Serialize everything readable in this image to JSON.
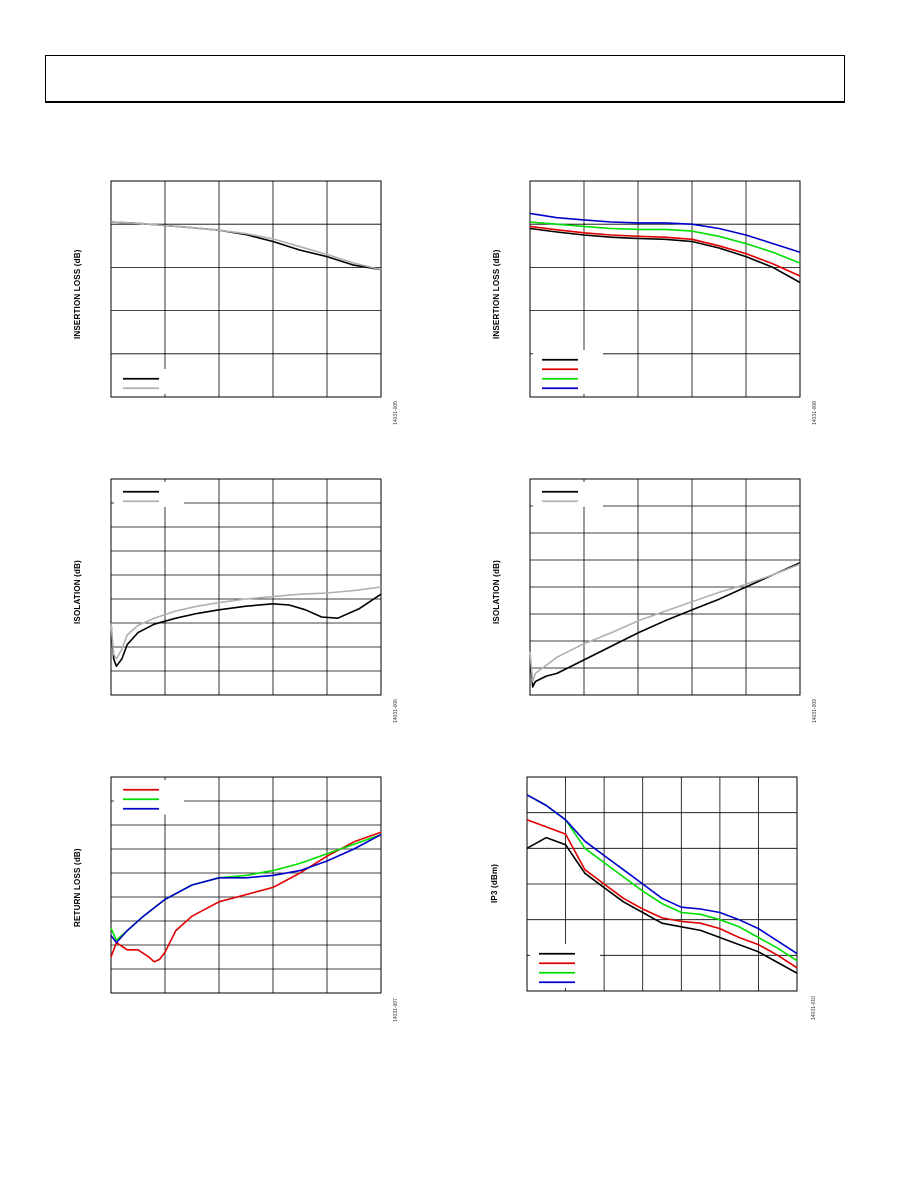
{
  "page": {
    "header_text": ""
  },
  "charts": [
    {
      "ylabel": "INSERTION LOSS (dB)",
      "fig_code": "14031-005",
      "xlim": [
        0,
        5
      ],
      "ylim": [
        0,
        5
      ],
      "grid": {
        "xdiv": 5,
        "ydiv": 5
      },
      "legend": {
        "placement": "bottom-left"
      },
      "series": [
        {
          "color": "#000000",
          "points": [
            [
              0,
              4.05
            ],
            [
              0.5,
              4.02
            ],
            [
              1,
              3.97
            ],
            [
              1.5,
              3.92
            ],
            [
              2,
              3.86
            ],
            [
              2.5,
              3.76
            ],
            [
              3,
              3.6
            ],
            [
              3.5,
              3.4
            ],
            [
              4,
              3.25
            ],
            [
              4.5,
              3.05
            ],
            [
              5,
              2.95
            ]
          ]
        },
        {
          "color": "#b0b0b0",
          "points": [
            [
              0,
              4.05
            ],
            [
              0.5,
              4.02
            ],
            [
              1,
              3.97
            ],
            [
              1.5,
              3.92
            ],
            [
              2,
              3.86
            ],
            [
              2.5,
              3.78
            ],
            [
              3,
              3.66
            ],
            [
              3.5,
              3.48
            ],
            [
              4,
              3.3
            ],
            [
              4.5,
              3.1
            ],
            [
              5,
              2.95
            ]
          ]
        }
      ]
    },
    {
      "ylabel": "INSERTION LOSS (dB)",
      "fig_code": "14031-008",
      "xlim": [
        0,
        5
      ],
      "ylim": [
        0,
        5
      ],
      "grid": {
        "xdiv": 5,
        "ydiv": 5
      },
      "legend": {
        "placement": "bottom-left"
      },
      "series": [
        {
          "color": "#000000",
          "points": [
            [
              0,
              3.9
            ],
            [
              0.5,
              3.82
            ],
            [
              1,
              3.75
            ],
            [
              1.5,
              3.7
            ],
            [
              2,
              3.67
            ],
            [
              2.5,
              3.65
            ],
            [
              3,
              3.6
            ],
            [
              3.5,
              3.45
            ],
            [
              4,
              3.25
            ],
            [
              4.5,
              3.0
            ],
            [
              5,
              2.65
            ]
          ]
        },
        {
          "color": "#e00000",
          "points": [
            [
              0,
              3.95
            ],
            [
              0.5,
              3.87
            ],
            [
              1,
              3.8
            ],
            [
              1.5,
              3.75
            ],
            [
              2,
              3.72
            ],
            [
              2.5,
              3.7
            ],
            [
              3,
              3.65
            ],
            [
              3.5,
              3.5
            ],
            [
              4,
              3.32
            ],
            [
              4.5,
              3.08
            ],
            [
              5,
              2.8
            ]
          ]
        },
        {
          "color": "#00dd00",
          "points": [
            [
              0,
              4.05
            ],
            [
              0.5,
              4.0
            ],
            [
              1,
              3.95
            ],
            [
              1.5,
              3.9
            ],
            [
              2,
              3.88
            ],
            [
              2.5,
              3.88
            ],
            [
              3,
              3.84
            ],
            [
              3.5,
              3.72
            ],
            [
              4,
              3.55
            ],
            [
              4.5,
              3.35
            ],
            [
              5,
              3.1
            ]
          ]
        },
        {
          "color": "#0000cc",
          "points": [
            [
              0,
              4.25
            ],
            [
              0.5,
              4.15
            ],
            [
              1,
              4.1
            ],
            [
              1.5,
              4.05
            ],
            [
              2,
              4.03
            ],
            [
              2.5,
              4.03
            ],
            [
              3,
              4.0
            ],
            [
              3.5,
              3.9
            ],
            [
              4,
              3.75
            ],
            [
              4.5,
              3.55
            ],
            [
              5,
              3.35
            ]
          ]
        }
      ]
    },
    {
      "ylabel": "ISOLATION (dB)",
      "fig_code": "14031-006",
      "xlim": [
        0,
        5
      ],
      "ylim": [
        0,
        9
      ],
      "grid": {
        "xdiv": 5,
        "ydiv": 9
      },
      "legend": {
        "placement": "top-left"
      },
      "series": [
        {
          "color": "#000000",
          "points": [
            [
              0,
              3.0
            ],
            [
              0.05,
              1.5
            ],
            [
              0.1,
              1.2
            ],
            [
              0.2,
              1.5
            ],
            [
              0.3,
              2.1
            ],
            [
              0.5,
              2.6
            ],
            [
              0.8,
              2.95
            ],
            [
              1.2,
              3.2
            ],
            [
              1.6,
              3.4
            ],
            [
              2,
              3.55
            ],
            [
              2.5,
              3.7
            ],
            [
              3,
              3.8
            ],
            [
              3.3,
              3.75
            ],
            [
              3.6,
              3.55
            ],
            [
              3.9,
              3.25
            ],
            [
              4.2,
              3.2
            ],
            [
              4.6,
              3.6
            ],
            [
              5,
              4.2
            ]
          ]
        },
        {
          "color": "#b0b0b0",
          "points": [
            [
              0,
              3.0
            ],
            [
              0.05,
              1.7
            ],
            [
              0.1,
              1.5
            ],
            [
              0.2,
              1.9
            ],
            [
              0.3,
              2.5
            ],
            [
              0.5,
              2.9
            ],
            [
              0.8,
              3.2
            ],
            [
              1.2,
              3.5
            ],
            [
              1.6,
              3.7
            ],
            [
              2,
              3.85
            ],
            [
              2.5,
              4.0
            ],
            [
              3,
              4.1
            ],
            [
              3.5,
              4.2
            ],
            [
              4,
              4.25
            ],
            [
              4.5,
              4.35
            ],
            [
              5,
              4.5
            ]
          ]
        }
      ]
    },
    {
      "ylabel": "ISOLATION (dB)",
      "fig_code": "14031-009",
      "xlim": [
        0,
        5
      ],
      "ylim": [
        0,
        8
      ],
      "grid": {
        "xdiv": 5,
        "ydiv": 8
      },
      "legend": {
        "placement": "top-left"
      },
      "series": [
        {
          "color": "#000000",
          "points": [
            [
              0,
              1.5
            ],
            [
              0.05,
              0.3
            ],
            [
              0.1,
              0.5
            ],
            [
              0.3,
              0.7
            ],
            [
              0.5,
              0.8
            ],
            [
              1,
              1.3
            ],
            [
              1.5,
              1.8
            ],
            [
              2,
              2.3
            ],
            [
              2.5,
              2.75
            ],
            [
              3,
              3.15
            ],
            [
              3.5,
              3.55
            ],
            [
              4,
              4.0
            ],
            [
              4.5,
              4.45
            ],
            [
              5,
              4.9
            ]
          ]
        },
        {
          "color": "#b0b0b0",
          "points": [
            [
              0,
              1.6
            ],
            [
              0.05,
              0.5
            ],
            [
              0.1,
              0.8
            ],
            [
              0.3,
              1.1
            ],
            [
              0.5,
              1.4
            ],
            [
              1,
              1.9
            ],
            [
              1.5,
              2.3
            ],
            [
              2,
              2.75
            ],
            [
              2.5,
              3.1
            ],
            [
              3,
              3.45
            ],
            [
              3.5,
              3.8
            ],
            [
              4,
              4.1
            ],
            [
              4.5,
              4.45
            ],
            [
              5,
              4.85
            ]
          ]
        }
      ]
    },
    {
      "ylabel": "RETURN LOSS (dB)",
      "fig_code": "14031-007",
      "xlim": [
        0,
        5
      ],
      "ylim": [
        0,
        9
      ],
      "grid": {
        "xdiv": 5,
        "ydiv": 9
      },
      "legend": {
        "placement": "top-left"
      },
      "series": [
        {
          "color": "#e00000",
          "points": [
            [
              0,
              1.5
            ],
            [
              0.1,
              2.1
            ],
            [
              0.3,
              1.8
            ],
            [
              0.5,
              1.8
            ],
            [
              0.7,
              1.5
            ],
            [
              0.8,
              1.3
            ],
            [
              0.9,
              1.4
            ],
            [
              1.0,
              1.7
            ],
            [
              1.2,
              2.6
            ],
            [
              1.5,
              3.2
            ],
            [
              2,
              3.8
            ],
            [
              2.5,
              4.1
            ],
            [
              3,
              4.4
            ],
            [
              3.5,
              5.0
            ],
            [
              4,
              5.7
            ],
            [
              4.5,
              6.3
            ],
            [
              5,
              6.7
            ]
          ]
        },
        {
          "color": "#00dd00",
          "points": [
            [
              0,
              2.7
            ],
            [
              0.1,
              2.2
            ],
            [
              0.3,
              2.6
            ],
            [
              0.6,
              3.2
            ],
            [
              1,
              3.9
            ],
            [
              1.5,
              4.5
            ],
            [
              2,
              4.8
            ],
            [
              2.5,
              4.9
            ],
            [
              3,
              5.1
            ],
            [
              3.5,
              5.4
            ],
            [
              4,
              5.8
            ],
            [
              4.5,
              6.2
            ],
            [
              5,
              6.6
            ]
          ]
        },
        {
          "color": "#0000cc",
          "points": [
            [
              0,
              2.4
            ],
            [
              0.1,
              2.1
            ],
            [
              0.3,
              2.6
            ],
            [
              0.6,
              3.2
            ],
            [
              1,
              3.9
            ],
            [
              1.5,
              4.5
            ],
            [
              2,
              4.8
            ],
            [
              2.5,
              4.8
            ],
            [
              3,
              4.9
            ],
            [
              3.5,
              5.1
            ],
            [
              4,
              5.5
            ],
            [
              4.5,
              6.0
            ],
            [
              5,
              6.6
            ]
          ]
        }
      ]
    },
    {
      "ylabel": "IP3 (dBm)",
      "fig_code": "14031-010",
      "xlim": [
        0,
        7
      ],
      "ylim": [
        0,
        6
      ],
      "grid": {
        "xdiv": 7,
        "ydiv": 6
      },
      "legend": {
        "placement": "bottom-left"
      },
      "series": [
        {
          "color": "#000000",
          "points": [
            [
              0,
              4.0
            ],
            [
              0.5,
              4.3
            ],
            [
              1,
              4.1
            ],
            [
              1.5,
              3.3
            ],
            [
              2,
              2.9
            ],
            [
              2.5,
              2.5
            ],
            [
              3,
              2.2
            ],
            [
              3.5,
              1.9
            ],
            [
              4,
              1.8
            ],
            [
              4.5,
              1.7
            ],
            [
              5,
              1.5
            ],
            [
              5.5,
              1.3
            ],
            [
              6,
              1.1
            ],
            [
              6.5,
              0.8
            ],
            [
              7,
              0.5
            ]
          ]
        },
        {
          "color": "#e00000",
          "points": [
            [
              0,
              4.8
            ],
            [
              0.5,
              4.6
            ],
            [
              1,
              4.4
            ],
            [
              1.5,
              3.4
            ],
            [
              2,
              3.0
            ],
            [
              2.5,
              2.6
            ],
            [
              3,
              2.3
            ],
            [
              3.5,
              2.05
            ],
            [
              4,
              1.95
            ],
            [
              4.5,
              1.9
            ],
            [
              5,
              1.75
            ],
            [
              5.5,
              1.5
            ],
            [
              6,
              1.3
            ],
            [
              6.5,
              1.0
            ],
            [
              7,
              0.65
            ]
          ]
        },
        {
          "color": "#00dd00",
          "points": [
            [
              0,
              5.5
            ],
            [
              0.5,
              5.2
            ],
            [
              1,
              4.8
            ],
            [
              1.5,
              4.0
            ],
            [
              2,
              3.6
            ],
            [
              2.5,
              3.2
            ],
            [
              3,
              2.8
            ],
            [
              3.5,
              2.45
            ],
            [
              4,
              2.2
            ],
            [
              4.5,
              2.15
            ],
            [
              5,
              2.0
            ],
            [
              5.5,
              1.8
            ],
            [
              6,
              1.5
            ],
            [
              6.5,
              1.2
            ],
            [
              7,
              0.85
            ]
          ]
        },
        {
          "color": "#0000cc",
          "points": [
            [
              0,
              5.5
            ],
            [
              0.5,
              5.2
            ],
            [
              1,
              4.8
            ],
            [
              1.5,
              4.2
            ],
            [
              2,
              3.8
            ],
            [
              2.5,
              3.4
            ],
            [
              3,
              3.0
            ],
            [
              3.5,
              2.6
            ],
            [
              4,
              2.35
            ],
            [
              4.5,
              2.3
            ],
            [
              5,
              2.2
            ],
            [
              5.5,
              2.0
            ],
            [
              6,
              1.75
            ],
            [
              6.5,
              1.4
            ],
            [
              7,
              1.05
            ]
          ]
        }
      ]
    }
  ]
}
